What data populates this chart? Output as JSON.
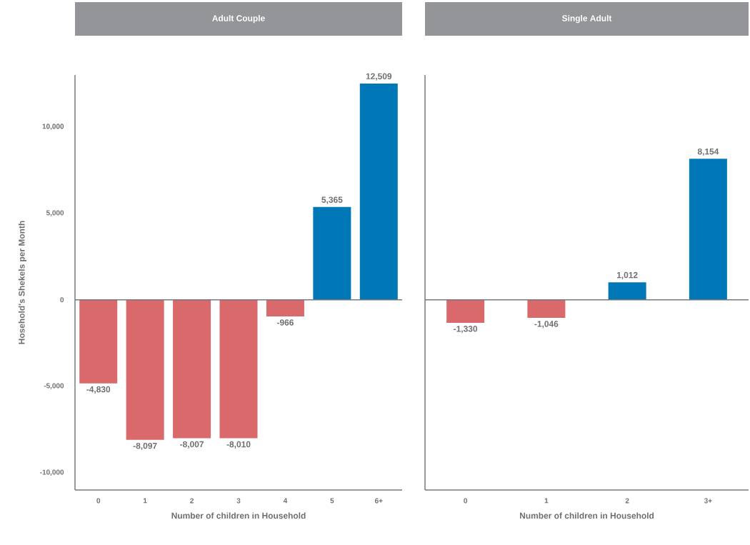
{
  "chart_data": [
    {
      "type": "bar",
      "title": "Adult Couple",
      "xlabel": "Number of children in Household",
      "ylabel": "Hosehold's Shekels per Month",
      "categories": [
        "0",
        "1",
        "2",
        "3",
        "4",
        "5",
        "6+"
      ],
      "values": [
        -4830,
        -8097,
        -8007,
        -8010,
        -966,
        5365,
        12509
      ],
      "colors": [
        "#d9696a",
        "#d9696a",
        "#d9696a",
        "#d9696a",
        "#d9696a",
        "#0077b6",
        "#0077b6"
      ],
      "value_labels": [
        "-4,830",
        "-8,097",
        "-8,007",
        "-8,010",
        "-966",
        "5,365",
        "12,509"
      ],
      "ylim": [
        -11000,
        13000
      ],
      "yticks": [
        {
          "value": -10000,
          "label": "-10,000"
        },
        {
          "value": -5000,
          "label": "-5,000"
        },
        0,
        {
          "value": 5000,
          "label": "5,000"
        },
        {
          "value": 10000,
          "label": "10,000"
        }
      ]
    },
    {
      "type": "bar",
      "title": "Single Adult",
      "xlabel": "Number of children in Household",
      "categories": [
        "0",
        "1",
        "2",
        "3+"
      ],
      "values": [
        -1330,
        -1046,
        1012,
        8154
      ],
      "colors": [
        "#d9696a",
        "#d9696a",
        "#0077b6",
        "#0077b6"
      ],
      "value_labels": [
        "-1,330",
        "-1,046",
        "1,012",
        "8,154"
      ],
      "ylim": [
        -11000,
        13000
      ],
      "tick_labels": "x"
    }
  ]
}
